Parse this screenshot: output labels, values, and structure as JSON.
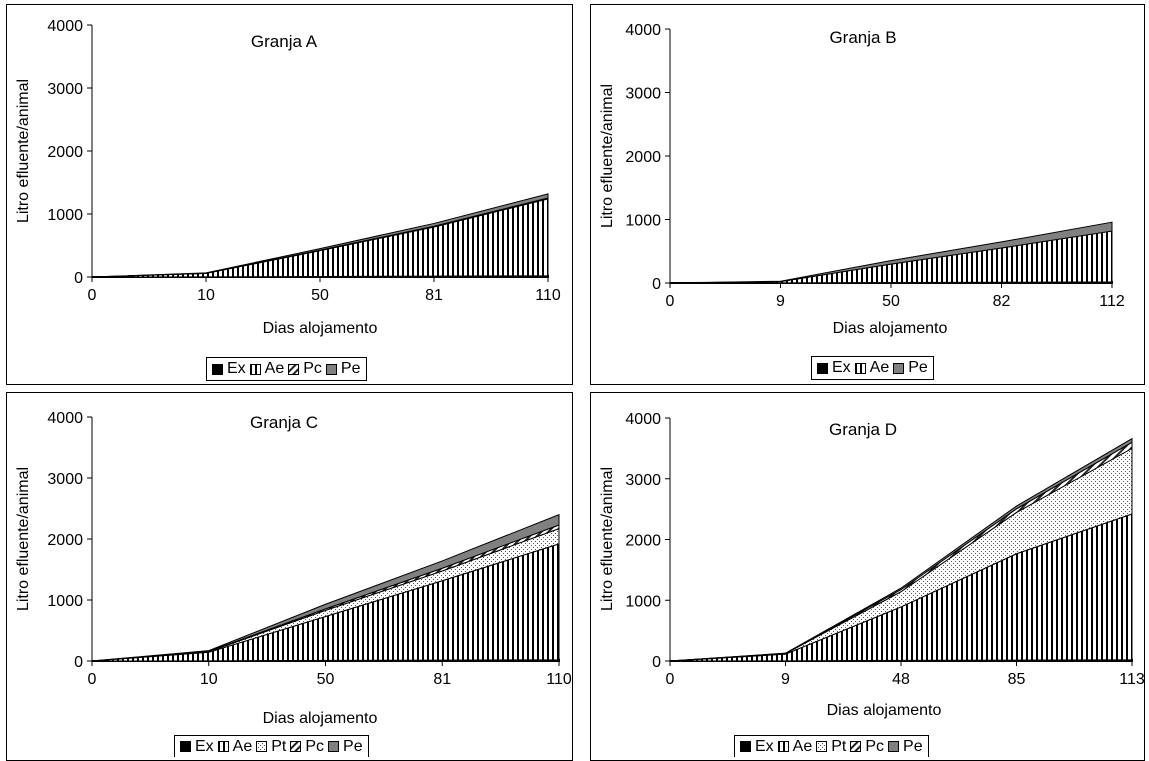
{
  "chart_data": [
    {
      "type": "area",
      "stacked": true,
      "title": "Granja A",
      "xlabel": "Dias alojamento",
      "ylabel": "Litro efluente/animal",
      "ylim": [
        0,
        4000
      ],
      "yticks": [
        "0",
        "1000",
        "2000",
        "3000",
        "4000"
      ],
      "categories": [
        "0",
        "10",
        "50",
        "81",
        "110"
      ],
      "series": [
        {
          "name": "Ex",
          "values": [
            0,
            2,
            8,
            14,
            20
          ]
        },
        {
          "name": "Ae",
          "values": [
            0,
            55,
            410,
            780,
            1220
          ]
        },
        {
          "name": "Pc",
          "values": [
            0,
            2,
            8,
            12,
            15
          ]
        },
        {
          "name": "Pe",
          "values": [
            0,
            6,
            24,
            44,
            65
          ]
        }
      ],
      "legend_position": "bottom"
    },
    {
      "type": "area",
      "stacked": true,
      "title": "Granja B",
      "xlabel": "Dias alojamento",
      "ylabel": "Litro efluente/animal",
      "ylim": [
        0,
        4000
      ],
      "yticks": [
        "0",
        "1000",
        "2000",
        "3000",
        "4000"
      ],
      "categories": [
        "0",
        "9",
        "50",
        "82",
        "112"
      ],
      "series": [
        {
          "name": "Ex",
          "values": [
            0,
            2,
            8,
            12,
            18
          ]
        },
        {
          "name": "Ae",
          "values": [
            0,
            20,
            290,
            540,
            800
          ]
        },
        {
          "name": "Pe",
          "values": [
            0,
            6,
            55,
            95,
            140
          ]
        }
      ],
      "legend_position": "bottom"
    },
    {
      "type": "area",
      "stacked": true,
      "title": "Granja C",
      "xlabel": "Dias alojamento",
      "ylabel": "Litro efluente/animal",
      "ylim": [
        0,
        4000
      ],
      "yticks": [
        "0",
        "1000",
        "2000",
        "3000",
        "4000"
      ],
      "categories": [
        "0",
        "10",
        "50",
        "81",
        "110"
      ],
      "series": [
        {
          "name": "Ex",
          "values": [
            0,
            3,
            10,
            15,
            20
          ]
        },
        {
          "name": "Ae",
          "values": [
            0,
            140,
            720,
            1300,
            1900
          ]
        },
        {
          "name": "Pt",
          "values": [
            0,
            10,
            100,
            160,
            250
          ]
        },
        {
          "name": "Pc",
          "values": [
            0,
            5,
            25,
            45,
            60
          ]
        },
        {
          "name": "Pe",
          "values": [
            0,
            12,
            75,
            120,
            170
          ]
        }
      ],
      "legend_position": "bottom"
    },
    {
      "type": "area",
      "stacked": true,
      "title": "Granja D",
      "xlabel": "Dias alojamento",
      "ylabel": "Litro efluente/animal",
      "ylim": [
        0,
        4000
      ],
      "yticks": [
        "0",
        "1000",
        "2000",
        "3000",
        "4000"
      ],
      "categories": [
        "0",
        "9",
        "48",
        "85",
        "113"
      ],
      "series": [
        {
          "name": "Ex",
          "values": [
            0,
            3,
            10,
            15,
            20
          ]
        },
        {
          "name": "Ae",
          "values": [
            0,
            110,
            880,
            1750,
            2400
          ]
        },
        {
          "name": "Pt",
          "values": [
            0,
            10,
            250,
            680,
            1080
          ]
        },
        {
          "name": "Pc",
          "values": [
            0,
            3,
            35,
            60,
            100
          ]
        },
        {
          "name": "Pe",
          "values": [
            0,
            3,
            25,
            45,
            60
          ]
        }
      ],
      "legend_position": "bottom"
    }
  ]
}
